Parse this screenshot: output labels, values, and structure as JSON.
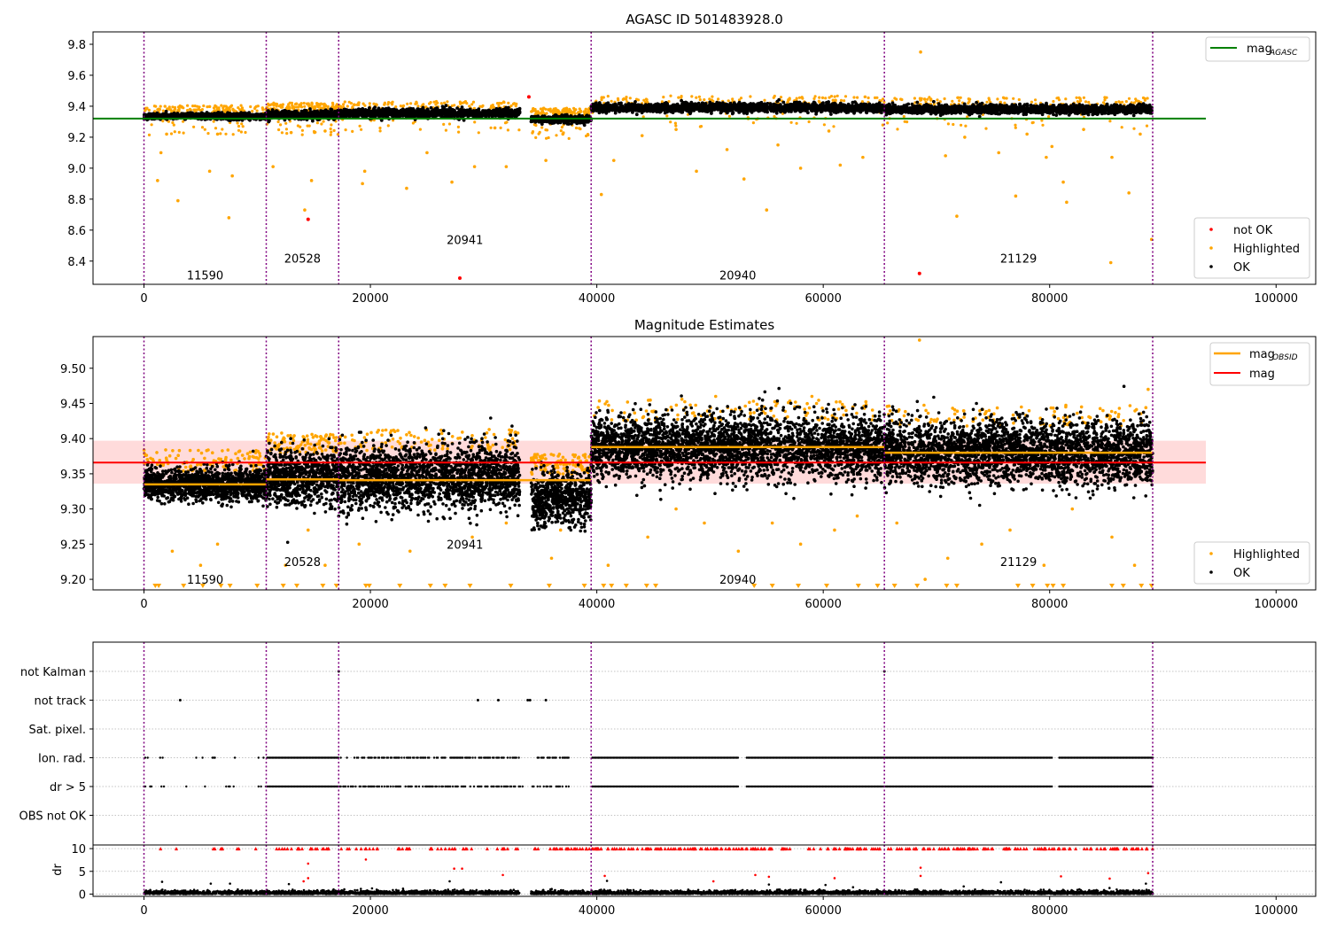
{
  "colors": {
    "ok": "#000000",
    "highlighted": "#ffa500",
    "not_ok": "#ff0000",
    "mag_agasc": "#008000",
    "mag_obsid": "#ffa500",
    "mag": "#ff0000",
    "band": "#ffcccc",
    "obsid_boundary": "#800080",
    "grid": "#b0b0b0"
  },
  "obsids": [
    {
      "id": "11590",
      "start": 0,
      "end": 10800,
      "mag_obsid": 9.335
    },
    {
      "id": "20528",
      "start": 10800,
      "end": 17200,
      "mag_obsid": 9.342
    },
    {
      "id": "20941",
      "start": 17200,
      "end": 39500,
      "mag_obsid": 9.341
    },
    {
      "id": "20940",
      "start": 39500,
      "end": 65400,
      "mag_obsid": 9.388
    },
    {
      "id": "21129",
      "start": 65400,
      "end": 89100,
      "mag_obsid": 9.38
    }
  ],
  "chart_data": [
    {
      "type": "scatter",
      "title": "AGASC ID 501483928.0",
      "xlim": [
        -4500,
        103500
      ],
      "ylim": [
        8.25,
        9.88
      ],
      "xticks": [
        "0",
        "20000",
        "40000",
        "60000",
        "80000",
        "100000"
      ],
      "xtick_values": [
        0,
        20000,
        40000,
        60000,
        80000,
        100000
      ],
      "yticks": [
        "8.4",
        "8.6",
        "8.8",
        "9.0",
        "9.2",
        "9.4",
        "9.6",
        "9.8"
      ],
      "ytick_values": [
        8.4,
        8.6,
        8.8,
        9.0,
        9.2,
        9.4,
        9.6,
        9.8
      ],
      "mag_agasc": 9.32,
      "line_xrange": [
        -4500,
        93800
      ],
      "obsid_label_y": [
        8.31,
        8.42,
        8.54,
        8.31,
        8.42
      ],
      "segments": [
        {
          "start": 0,
          "end": 10800,
          "mean": 9.335,
          "spread": 0.018
        },
        {
          "start": 10800,
          "end": 17200,
          "mean": 9.345,
          "spread": 0.025
        },
        {
          "start": 17200,
          "end": 33200,
          "mean": 9.355,
          "spread": 0.025
        },
        {
          "start": 34200,
          "end": 39500,
          "mean": 9.315,
          "spread": 0.022
        },
        {
          "start": 39500,
          "end": 65400,
          "mean": 9.39,
          "spread": 0.025
        },
        {
          "start": 65400,
          "end": 89100,
          "mean": 9.38,
          "spread": 0.025
        }
      ],
      "outliers_highlighted": [
        [
          3000,
          8.79
        ],
        [
          7500,
          8.68
        ],
        [
          1200,
          8.92
        ],
        [
          5800,
          8.98
        ],
        [
          7800,
          8.95
        ],
        [
          1500,
          9.1
        ],
        [
          11400,
          9.01
        ],
        [
          14800,
          8.92
        ],
        [
          14200,
          8.73
        ],
        [
          19300,
          8.9
        ],
        [
          19500,
          8.98
        ],
        [
          23200,
          8.87
        ],
        [
          27200,
          8.91
        ],
        [
          29200,
          9.01
        ],
        [
          32000,
          9.01
        ],
        [
          35500,
          9.05
        ],
        [
          40400,
          8.83
        ],
        [
          41500,
          9.05
        ],
        [
          48800,
          8.98
        ],
        [
          51500,
          9.12
        ],
        [
          53000,
          8.93
        ],
        [
          55000,
          8.73
        ],
        [
          56000,
          9.15
        ],
        [
          58000,
          9.0
        ],
        [
          61500,
          9.02
        ],
        [
          63500,
          9.07
        ],
        [
          70800,
          9.08
        ],
        [
          71800,
          8.69
        ],
        [
          75500,
          9.1
        ],
        [
          77000,
          8.82
        ],
        [
          79700,
          9.07
        ],
        [
          80200,
          9.14
        ],
        [
          81200,
          8.91
        ],
        [
          81500,
          8.78
        ],
        [
          85500,
          9.07
        ],
        [
          87000,
          8.84
        ],
        [
          88000,
          9.22
        ],
        [
          89000,
          8.54
        ],
        [
          85400,
          8.39
        ],
        [
          68600,
          9.75
        ],
        [
          2000,
          9.22
        ],
        [
          6500,
          9.22
        ],
        [
          13000,
          9.23
        ],
        [
          16000,
          9.24
        ],
        [
          25000,
          9.1
        ],
        [
          31000,
          9.26
        ],
        [
          37000,
          9.22
        ],
        [
          44000,
          9.21
        ],
        [
          47000,
          9.25
        ],
        [
          60500,
          9.24
        ],
        [
          72500,
          9.2
        ],
        [
          78000,
          9.22
        ],
        [
          83000,
          9.25
        ]
      ],
      "outliers_not_ok": [
        [
          14500,
          8.67
        ],
        [
          27900,
          8.29
        ],
        [
          34000,
          9.46
        ],
        [
          68500,
          8.32
        ]
      ],
      "legend_upper": [
        {
          "label": "mag",
          "sub": "AGASC",
          "color_key": "mag_agasc",
          "kind": "line"
        }
      ],
      "legend_lower": [
        {
          "label": "not OK",
          "color_key": "not_ok",
          "kind": "dot"
        },
        {
          "label": "Highlighted",
          "color_key": "highlighted",
          "kind": "dot"
        },
        {
          "label": "OK",
          "color_key": "ok",
          "kind": "dot"
        }
      ]
    },
    {
      "type": "scatter",
      "title": "Magnitude Estimates",
      "xlim": [
        -4500,
        103500
      ],
      "ylim": [
        9.185,
        9.545
      ],
      "xticks": [
        "0",
        "20000",
        "40000",
        "60000",
        "80000",
        "100000"
      ],
      "xtick_values": [
        0,
        20000,
        40000,
        60000,
        80000,
        100000
      ],
      "yticks": [
        "9.20",
        "9.25",
        "9.30",
        "9.35",
        "9.40",
        "9.45",
        "9.50"
      ],
      "ytick_values": [
        9.2,
        9.25,
        9.3,
        9.35,
        9.4,
        9.45,
        9.5
      ],
      "mag": 9.366,
      "mag_band": [
        9.336,
        9.397
      ],
      "line_xrange": [
        -4500,
        93800
      ],
      "obsid_label_y": [
        9.2,
        9.225,
        9.25,
        9.2,
        9.225
      ],
      "segments": [
        {
          "start": 0,
          "end": 10800,
          "mean": 9.335,
          "spread": 0.02
        },
        {
          "start": 10800,
          "end": 17200,
          "mean": 9.345,
          "spread": 0.035
        },
        {
          "start": 17200,
          "end": 33200,
          "mean": 9.345,
          "spread": 0.04
        },
        {
          "start": 34200,
          "end": 39500,
          "mean": 9.315,
          "spread": 0.035
        },
        {
          "start": 39500,
          "end": 65400,
          "mean": 9.388,
          "spread": 0.04
        },
        {
          "start": 65400,
          "end": 89100,
          "mean": 9.38,
          "spread": 0.04
        }
      ],
      "outliers_highlighted": [
        [
          5000,
          9.22
        ],
        [
          2500,
          9.24
        ],
        [
          6500,
          9.25
        ],
        [
          12500,
          9.22
        ],
        [
          14500,
          9.27
        ],
        [
          16000,
          9.22
        ],
        [
          19000,
          9.25
        ],
        [
          23500,
          9.24
        ],
        [
          29000,
          9.26
        ],
        [
          32000,
          9.28
        ],
        [
          36000,
          9.23
        ],
        [
          41000,
          9.22
        ],
        [
          44500,
          9.26
        ],
        [
          47000,
          9.3
        ],
        [
          49500,
          9.28
        ],
        [
          52500,
          9.24
        ],
        [
          55500,
          9.28
        ],
        [
          58000,
          9.25
        ],
        [
          61000,
          9.27
        ],
        [
          63000,
          9.29
        ],
        [
          66500,
          9.28
        ],
        [
          69000,
          9.2
        ],
        [
          71000,
          9.23
        ],
        [
          74000,
          9.25
        ],
        [
          76500,
          9.27
        ],
        [
          79500,
          9.22
        ],
        [
          82000,
          9.3
        ],
        [
          85500,
          9.26
        ],
        [
          87500,
          9.22
        ],
        [
          68500,
          9.54
        ],
        [
          59000,
          9.46
        ],
        [
          50500,
          9.46
        ],
        [
          88700,
          9.47
        ],
        [
          36800,
          9.27
        ]
      ],
      "lower_markers_x": [
        1000,
        1300,
        3500,
        5200,
        6800,
        7600,
        10000,
        12300,
        13500,
        15800,
        17000,
        19600,
        19900,
        22600,
        25300,
        26600,
        28800,
        32400,
        35800,
        38900,
        40600,
        41300,
        42600,
        44400,
        45200,
        53900,
        55500,
        57800,
        60300,
        63100,
        64800,
        66300,
        68300,
        70900,
        71800,
        77200,
        78500,
        79800,
        80300,
        81200,
        85500,
        86500,
        88100,
        89000
      ],
      "lower_markers_y": 9.19,
      "legend_upper": [
        {
          "label": "mag",
          "sub": "OBSID",
          "color_key": "mag_obsid",
          "kind": "line"
        },
        {
          "label": "mag",
          "sub": "",
          "color_key": "mag",
          "kind": "line"
        }
      ],
      "legend_lower": [
        {
          "label": "Highlighted",
          "color_key": "highlighted",
          "kind": "dot"
        },
        {
          "label": "OK",
          "color_key": "ok",
          "kind": "dot"
        }
      ]
    },
    {
      "type": "scatter",
      "title": "",
      "xlim": [
        -4500,
        103500
      ],
      "flag_rows": [
        "not Kalman",
        "not track",
        "Sat. pixel.",
        "Ion. rad.",
        "dr > 5",
        "OBS not OK"
      ],
      "flag_points": {
        "not track": [
          3200,
          29500,
          31300,
          33900,
          34100,
          35500
        ],
        "not Kalman": [
          17200,
          65400
        ]
      },
      "dense_rows": [
        "Ion. rad.",
        "dr > 5"
      ],
      "dense_gaps": [
        [
          1800,
          2800
        ],
        [
          3800,
          4600
        ],
        [
          8200,
          9800
        ],
        [
          33500,
          34200
        ],
        [
          37600,
          39500
        ],
        [
          52500,
          53200
        ],
        [
          80300,
          80800
        ]
      ],
      "sparse_region": [
        0,
        10800
      ]
    },
    {
      "type": "scatter",
      "ylabel": "dr",
      "xlim": [
        -4500,
        103500
      ],
      "ylim": [
        -0.5,
        10.8
      ],
      "xticks": [
        "0",
        "20000",
        "40000",
        "60000",
        "80000",
        "100000"
      ],
      "xtick_values": [
        0,
        20000,
        40000,
        60000,
        80000,
        100000
      ],
      "yticks": [
        "0",
        "5",
        "10"
      ],
      "ytick_values": [
        0,
        5,
        10
      ],
      "clip_value": 10,
      "outliers_red": [
        [
          14500,
          6.7
        ],
        [
          14500,
          3.5
        ],
        [
          19600,
          7.6
        ],
        [
          27400,
          5.6
        ],
        [
          28100,
          5.6
        ],
        [
          40700,
          4.0
        ],
        [
          50300,
          2.8
        ],
        [
          54000,
          4.2
        ],
        [
          55200,
          3.8
        ],
        [
          61000,
          3.5
        ],
        [
          68600,
          5.8
        ],
        [
          68600,
          4.0
        ],
        [
          81000,
          3.9
        ],
        [
          85300,
          3.4
        ],
        [
          88700,
          4.6
        ],
        [
          31700,
          4.2
        ],
        [
          14100,
          2.8
        ]
      ],
      "outliers_black": [
        [
          1600,
          2.7
        ],
        [
          5900,
          2.3
        ],
        [
          7600,
          2.3
        ],
        [
          12800,
          2.2
        ],
        [
          27000,
          2.8
        ],
        [
          40900,
          2.9
        ],
        [
          55200,
          2.1
        ],
        [
          75700,
          2.6
        ],
        [
          88500,
          2.3
        ],
        [
          60200,
          2.0
        ]
      ]
    }
  ]
}
